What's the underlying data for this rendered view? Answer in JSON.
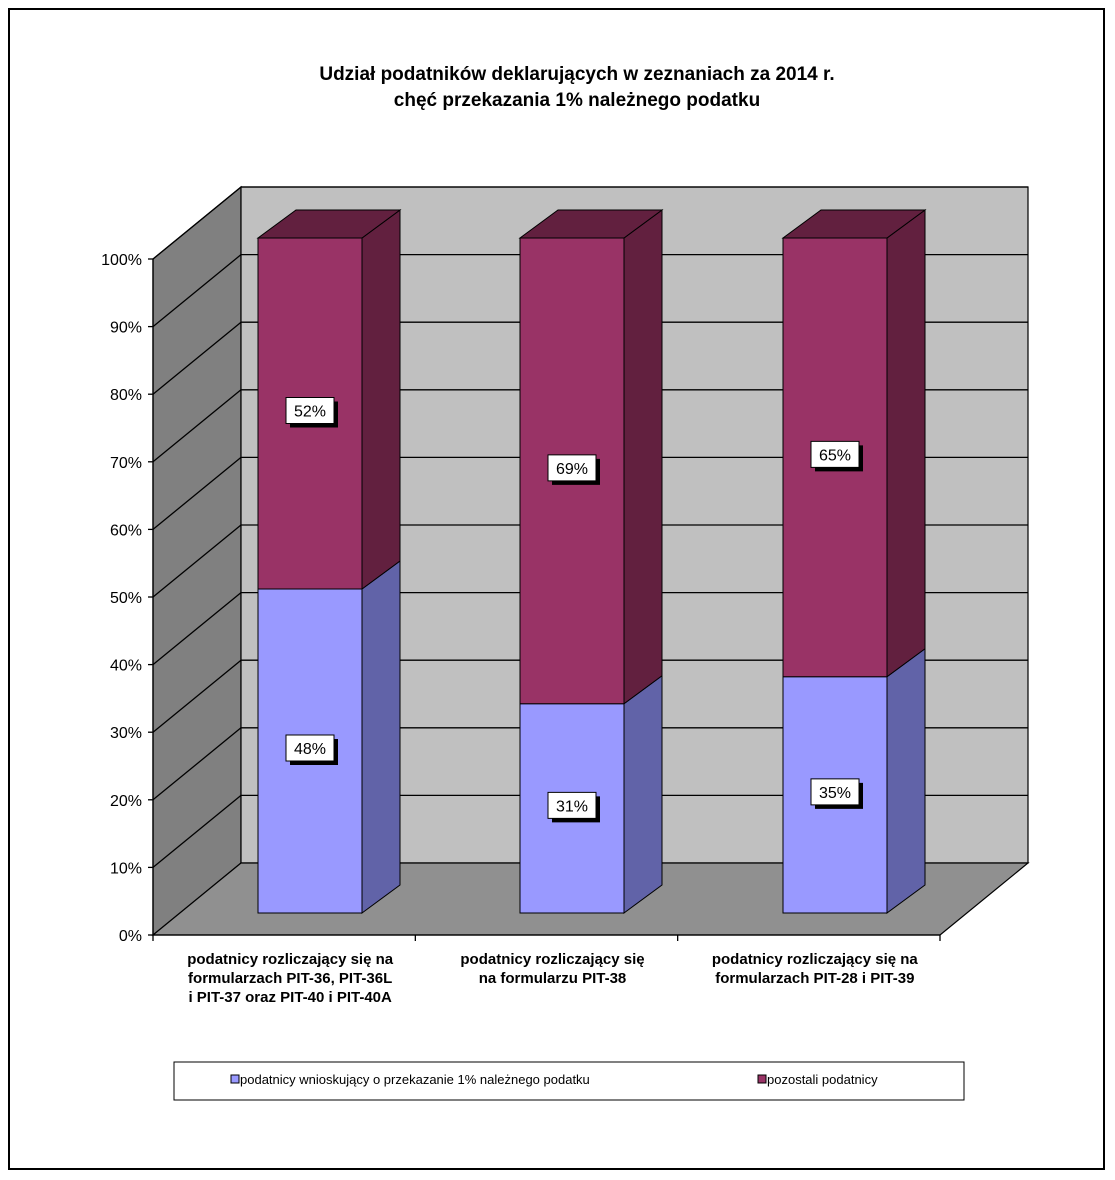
{
  "chart_data": {
    "type": "bar",
    "stacked": true,
    "percent_stacked": true,
    "three_d": true,
    "title": "Udział podatników deklarujących w zeznaniach za 2014 r.\nchęć przekazania 1% należnego podatku",
    "title_lines": [
      "Udział podatników deklarujących w zeznaniach za 2014 r.",
      "chęć przekazania 1% należnego podatku"
    ],
    "categories": [
      "podatnicy rozliczający się na formularzach PIT-36, PIT-36L i PIT-37 oraz PIT-40 i PIT-40A",
      "podatnicy rozliczający  się na formularzu PIT-38",
      "podatnicy rozliczający się na formularzach PIT-28 i PIT-39"
    ],
    "category_lines": [
      [
        "podatnicy rozliczający się na",
        "formularzach PIT-36, PIT-36L",
        "i PIT-37 oraz PIT-40 i PIT-40A"
      ],
      [
        "podatnicy rozliczający  się",
        "na formularzu PIT-38"
      ],
      [
        "podatnicy rozliczający się na",
        "formularzach PIT-28 i PIT-39"
      ]
    ],
    "series": [
      {
        "name": "podatnicy wnioskujący o przekazanie 1% należnego podatku",
        "values": [
          48,
          31,
          35
        ],
        "labels": [
          "48%",
          "31%",
          "35%"
        ],
        "color": "#9999FF",
        "side_color": "#6163A8"
      },
      {
        "name": "pozostali podatnicy",
        "values": [
          52,
          69,
          65
        ],
        "labels": [
          "52%",
          "69%",
          "65%"
        ],
        "color": "#993366",
        "side_color": "#62203F"
      }
    ],
    "ylim": [
      0,
      100
    ],
    "yticks": [
      0,
      10,
      20,
      30,
      40,
      50,
      60,
      70,
      80,
      90,
      100
    ],
    "ytick_labels": [
      "0%",
      "10%",
      "20%",
      "30%",
      "40%",
      "50%",
      "60%",
      "70%",
      "80%",
      "90%",
      "100%"
    ],
    "xlabel": "",
    "ylabel": "",
    "grid": true,
    "legend_position": "bottom",
    "colors": {
      "back_wall": "#C0C0C0",
      "side_wall": "#808080",
      "floor": "#909090"
    }
  }
}
